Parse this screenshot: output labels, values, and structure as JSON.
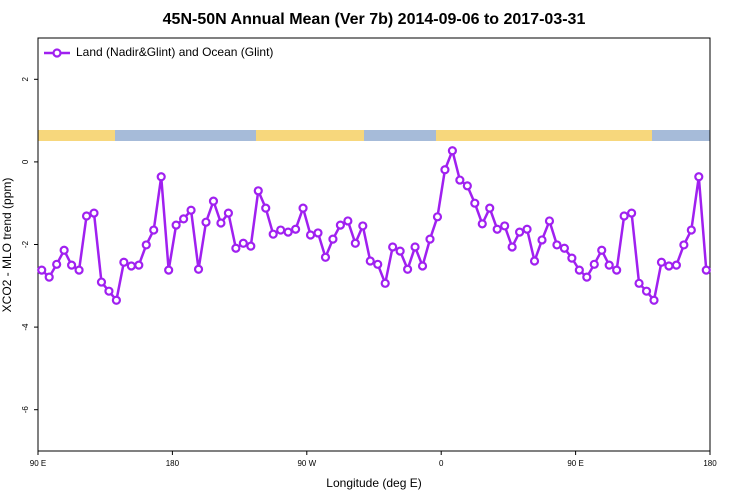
{
  "chart_data": {
    "type": "line",
    "title": "45N-50N Annual Mean (Ver 7b)   2014-09-06 to 2017-03-31",
    "x_label": "Longitude (deg E)",
    "y_label": "XCO2 - MLO trend (ppm)",
    "xlim": [
      90,
      540
    ],
    "ylim": [
      -7,
      3
    ],
    "xticks": [
      {
        "value": 90,
        "label": "90 E"
      },
      180,
      {
        "value": 270,
        "label": "90 W"
      },
      {
        "value": 360,
        "label": "0"
      },
      {
        "value": 450,
        "label": "90 E"
      },
      {
        "value": 540,
        "label": "180"
      }
    ],
    "yticks": [
      -6,
      -4,
      -2,
      0,
      2
    ],
    "legend": "top-left",
    "x": [
      92.5,
      97.5,
      102.5,
      107.5,
      112.5,
      117.5,
      122.5,
      127.5,
      132.5,
      137.5,
      142.5,
      147.5,
      152.5,
      157.5,
      162.5,
      167.5,
      172.5,
      177.5,
      182.5,
      187.5,
      192.5,
      197.5,
      202.5,
      207.5,
      212.5,
      217.5,
      222.5,
      227.5,
      232.5,
      237.5,
      242.5,
      247.5,
      252.5,
      257.5,
      262.5,
      267.5,
      272.5,
      277.5,
      282.5,
      287.5,
      292.5,
      297.5,
      302.5,
      307.5,
      312.5,
      317.5,
      322.5,
      327.5,
      332.5,
      337.5,
      342.5,
      347.5,
      352.5,
      357.5,
      362.5,
      367.5,
      372.5,
      377.5,
      382.5,
      387.5,
      392.5,
      397.5,
      402.5,
      407.5,
      412.5,
      417.5,
      422.5,
      427.5,
      432.5,
      437.5,
      442.5,
      447.5,
      452.5,
      457.5,
      462.5,
      467.5,
      472.5,
      477.5,
      482.5,
      487.5,
      492.5,
      497.5,
      502.5,
      507.5,
      512.5,
      517.5,
      522.5,
      527.5,
      532.5,
      537.5
    ],
    "series": [
      {
        "name": "Land (Nadir&Glint) and Ocean (Glint)",
        "color": "#a020f0",
        "values": [
          -2.62,
          -2.79,
          -2.48,
          -2.14,
          -2.5,
          -2.62,
          -1.31,
          -1.24,
          -2.91,
          -3.13,
          -3.35,
          -2.43,
          -2.52,
          -2.5,
          -2.01,
          -1.65,
          -0.36,
          -2.62,
          -1.53,
          -1.38,
          -1.17,
          -2.6,
          -1.46,
          -0.95,
          -1.48,
          -1.24,
          -2.09,
          -1.97,
          -2.04,
          -0.7,
          -1.12,
          -1.75,
          -1.65,
          -1.7,
          -1.63,
          -1.12,
          -1.77,
          -1.72,
          -2.31,
          -1.87,
          -1.53,
          -1.43,
          -1.97,
          -1.55,
          -2.4,
          -2.48,
          -2.94,
          -2.06,
          -2.16,
          -2.6,
          -2.06,
          -2.52,
          -1.87,
          -1.33,
          -0.19,
          0.27,
          -0.44,
          -0.58,
          -1.0,
          -1.5,
          -1.12,
          -1.63,
          -1.55,
          -2.06,
          -1.7,
          -1.63,
          -2.4,
          -1.89,
          -1.43,
          -2.01,
          -2.09,
          -2.33,
          -2.62,
          -2.79,
          -2.48,
          -2.14,
          -2.5,
          -2.62,
          -1.31,
          -1.24,
          -2.94,
          -3.13,
          -3.35,
          -2.43,
          -2.52,
          -2.5,
          -2.01,
          -1.65,
          -0.36,
          -2.62
        ]
      }
    ]
  }
}
